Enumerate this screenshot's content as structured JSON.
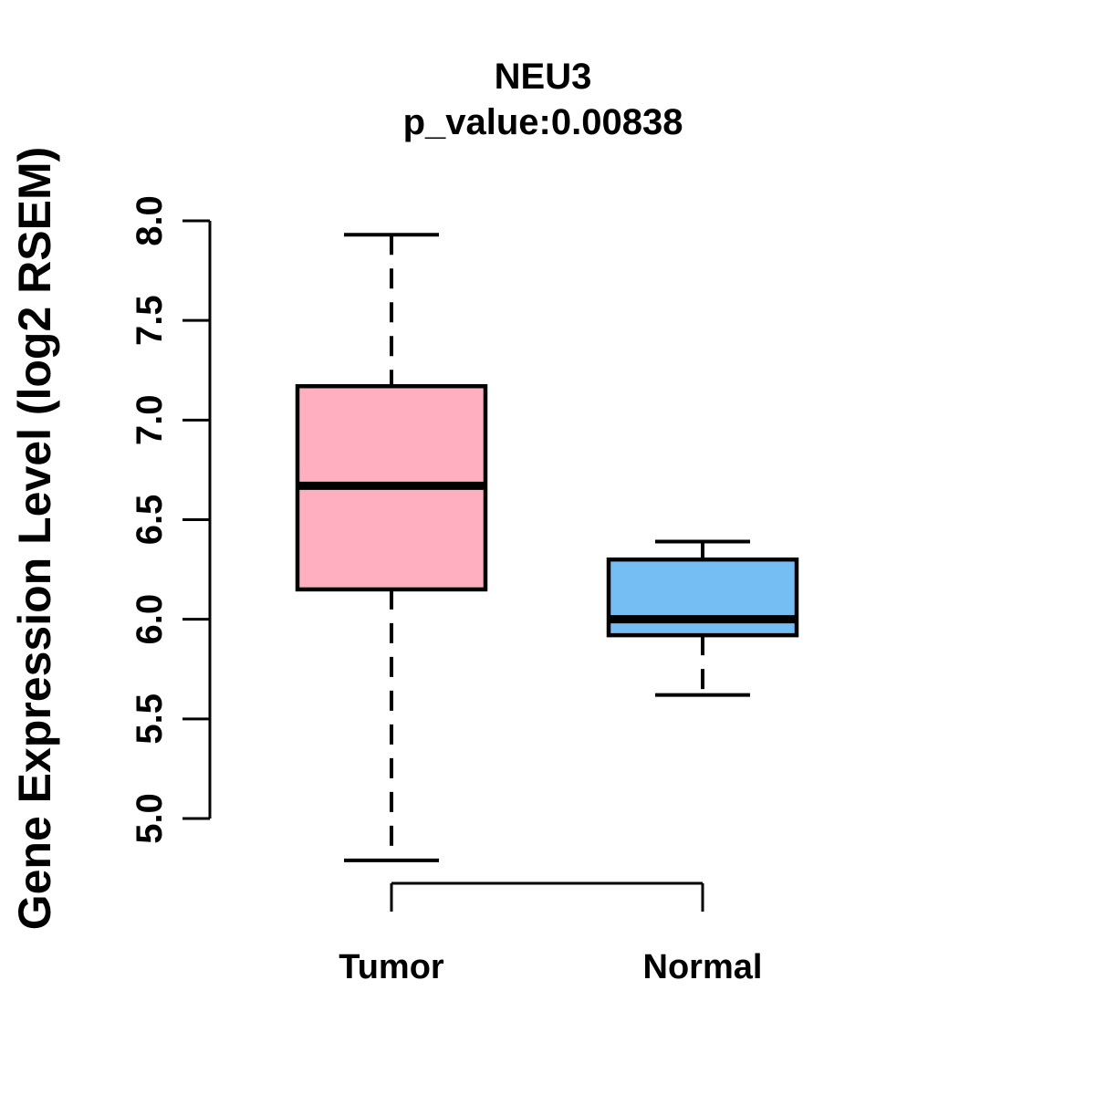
{
  "chart_data": {
    "type": "boxplot",
    "title": "NEU3",
    "subtitle": "p_value:0.00838",
    "p_value": 0.00838,
    "ylabel": "Gene Expression Level (log2 RSEM)",
    "xlabel": "",
    "ylim": [
      5.0,
      8.0
    ],
    "ytick_values": [
      5.0,
      5.5,
      6.0,
      6.5,
      7.0,
      7.5,
      8.0
    ],
    "ytick_labels": [
      "5.0",
      "5.5",
      "6.0",
      "6.5",
      "7.0",
      "7.5",
      "8.0"
    ],
    "grid": false,
    "legend": "none",
    "whisker_style": "dashed",
    "groups": [
      {
        "label": "Tumor",
        "fill_color": "#FFAFBF",
        "stats": {
          "lower_whisker": 4.79,
          "q1": 6.15,
          "median": 6.67,
          "q3": 7.17,
          "upper_whisker": 7.93
        }
      },
      {
        "label": "Normal",
        "fill_color": "#74BEF4",
        "stats": {
          "lower_whisker": 5.62,
          "q1": 5.92,
          "median": 6.0,
          "q3": 6.3,
          "upper_whisker": 6.39
        }
      }
    ],
    "colors": {
      "line": "#000000",
      "background": "#FFFFFF"
    }
  }
}
